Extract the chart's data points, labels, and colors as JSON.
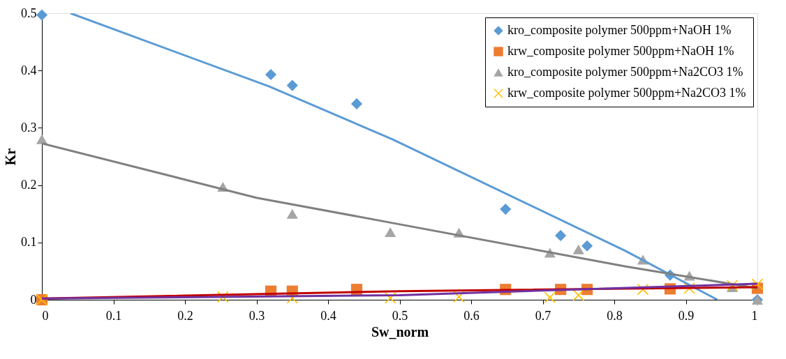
{
  "chart_data": {
    "type": "scatter",
    "xlabel": "Sw_norm",
    "ylabel": "Kr",
    "xlim": [
      0,
      1
    ],
    "ylim": [
      0,
      0.5
    ],
    "xticks": [
      0,
      0.1,
      0.2,
      0.3,
      0.4,
      0.5,
      0.6,
      0.7,
      0.8,
      0.9,
      1
    ],
    "yticks": [
      0,
      0.1,
      0.2,
      0.3,
      0.4,
      0.5
    ],
    "grid": false,
    "legend": "top right",
    "series": [
      {
        "name": "kro_composite polymer 500ppm+NaOH 1%",
        "color": "#5b9bd5",
        "marker": "diamond",
        "x": [
          0,
          0.32,
          0.35,
          0.44,
          0.648,
          0.725,
          0.762,
          0.878,
          1.0
        ],
        "values": [
          0.497,
          0.393,
          0.374,
          0.342,
          0.158,
          0.112,
          0.094,
          0.043,
          0.0
        ]
      },
      {
        "name": "krw_composite polymer 500ppm+NaOH 1%",
        "color": "#ed7d31",
        "marker": "square",
        "x": [
          0,
          0.32,
          0.35,
          0.44,
          0.648,
          0.725,
          0.762,
          0.878,
          1.0
        ],
        "values": [
          0.0,
          0.015,
          0.015,
          0.018,
          0.018,
          0.018,
          0.018,
          0.019,
          0.02
        ]
      },
      {
        "name": "kro_composite polymer 500ppm+Na2CO3 1%",
        "color": "#a5a5a5",
        "marker": "triangle",
        "x": [
          0,
          0.253,
          0.35,
          0.487,
          0.583,
          0.71,
          0.75,
          0.84,
          0.905,
          0.965,
          1.0
        ],
        "values": [
          0.28,
          0.197,
          0.15,
          0.118,
          0.117,
          0.082,
          0.088,
          0.07,
          0.042,
          0.022,
          0.0
        ]
      },
      {
        "name": "krw_composite polymer 500ppm+Na2CO3 1%",
        "color": "#ffc000",
        "marker": "cross",
        "x": [
          0,
          0.253,
          0.35,
          0.487,
          0.583,
          0.71,
          0.75,
          0.84,
          0.905,
          0.965,
          1.0
        ],
        "values": [
          0.0,
          0.005,
          0.003,
          0.003,
          0.005,
          0.004,
          0.008,
          0.018,
          0.02,
          0.025,
          0.027
        ]
      },
      {
        "type": "line",
        "color": "#5b9bd5",
        "marker": "none",
        "line_style": "solid",
        "x": [
          0.04,
          0.318,
          0.49,
          0.816,
          0.944
        ],
        "values": [
          0.5,
          0.372,
          0.28,
          0.085,
          0.0
        ]
      },
      {
        "type": "line",
        "color": "#808080",
        "marker": "none",
        "line_style": "solid",
        "x": [
          0,
          0.3,
          0.49,
          0.816,
          1.0
        ],
        "values": [
          0.273,
          0.178,
          0.134,
          0.058,
          0.02
        ]
      },
      {
        "type": "line",
        "color": "#c00000",
        "marker": "none",
        "line_style": "solid",
        "x": [
          0,
          0.5,
          1.0
        ],
        "values": [
          0.002,
          0.015,
          0.022
        ]
      },
      {
        "type": "line",
        "color": "#7030a0",
        "marker": "none",
        "line_style": "solid",
        "x": [
          0,
          0.5,
          1.0
        ],
        "values": [
          0.002,
          0.008,
          0.028
        ]
      }
    ]
  }
}
